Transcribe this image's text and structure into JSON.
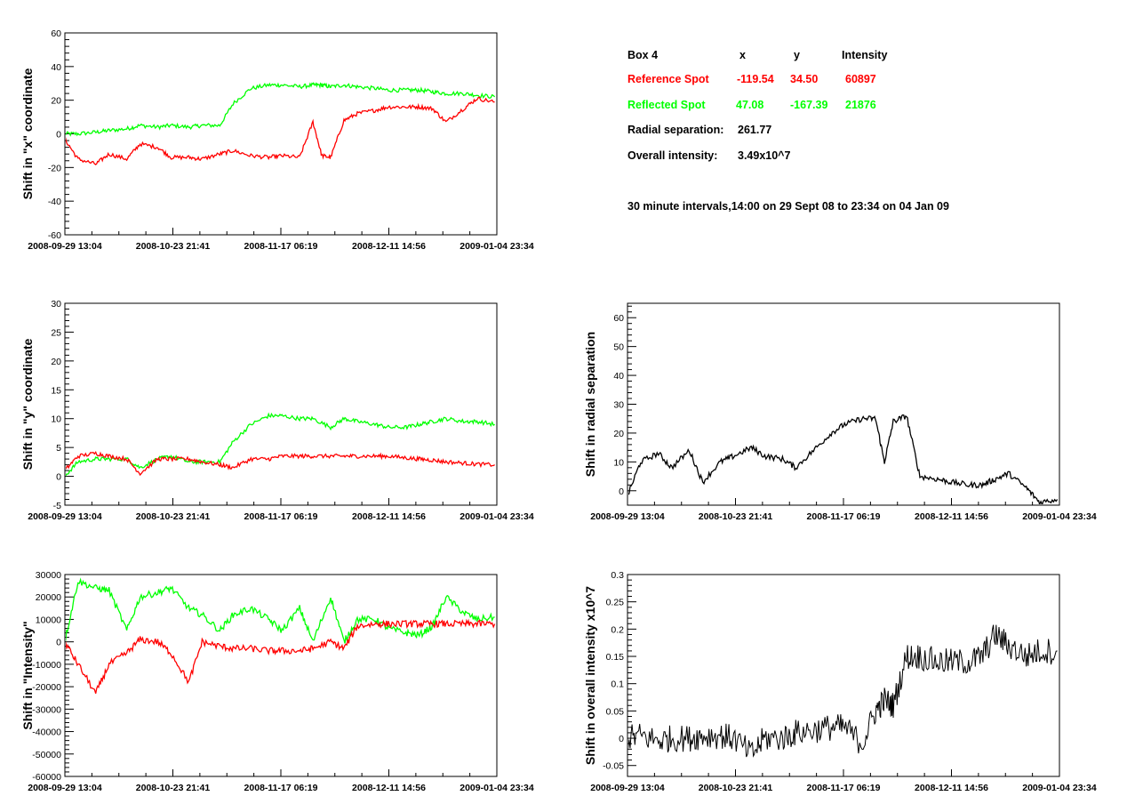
{
  "info": {
    "box_label": "Box 4",
    "col_x": "x",
    "col_y": "y",
    "col_intensity": "Intensity",
    "reference": {
      "label": "Reference Spot",
      "x": "-119.54",
      "y": "34.50",
      "intensity": "60897"
    },
    "reflected": {
      "label": "Reflected Spot",
      "x": "47.08",
      "y": "-167.39",
      "intensity": "21876"
    },
    "radial_label": "Radial separation:",
    "radial_value": "261.77",
    "overall_label": "Overall intensity:",
    "overall_value": "3.49x10^7",
    "interval_note": "30 minute intervals,14:00 on 29 Sept 08 to 23:34 on 04 Jan 09",
    "colors": {
      "reference": "#ff0000",
      "reflected": "#00ff00"
    }
  },
  "x_tick_labels": [
    "2008-09-29 13:04",
    "2008-10-23 21:41",
    "2008-11-17 06:19",
    "2008-12-11 14:56",
    "2009-01-04 23:34"
  ],
  "chart_data": [
    {
      "id": "x_shift",
      "type": "line",
      "ylabel": "Shift in \"x\" coordinate",
      "ylim": [
        -60,
        60
      ],
      "y_ticks": [
        -60,
        -40,
        -20,
        0,
        20,
        40,
        60
      ],
      "x_range": [
        "2008-09-29 13:04",
        "2009-01-04 23:34"
      ],
      "x": [
        "2008-09-29",
        "2008-10-02",
        "2008-10-06",
        "2008-10-09",
        "2008-10-13",
        "2008-10-16",
        "2008-10-20",
        "2008-10-23",
        "2008-10-27",
        "2008-10-30",
        "2008-11-03",
        "2008-11-06",
        "2008-11-10",
        "2008-11-14",
        "2008-11-17",
        "2008-11-21",
        "2008-11-24",
        "2008-11-26",
        "2008-11-28",
        "2008-12-01",
        "2008-12-04",
        "2008-12-08",
        "2008-12-11",
        "2008-12-15",
        "2008-12-18",
        "2008-12-21",
        "2008-12-24",
        "2008-12-28",
        "2008-12-31",
        "2009-01-04"
      ],
      "series": [
        {
          "name": "Reflected Spot",
          "color": "#00ff00",
          "values": [
            0,
            0,
            1,
            2,
            3,
            5,
            4,
            5,
            4,
            5,
            5,
            18,
            27,
            29,
            29,
            28,
            29,
            29,
            28,
            29,
            28,
            27,
            26,
            26,
            26,
            25,
            24,
            24,
            23,
            22
          ]
        },
        {
          "name": "Reference Spot",
          "color": "#ff0000",
          "values": [
            -3,
            -15,
            -18,
            -12,
            -15,
            -6,
            -8,
            -14,
            -14,
            -15,
            -12,
            -10,
            -13,
            -14,
            -13,
            -14,
            7,
            -13,
            -14,
            8,
            12,
            14,
            16,
            16,
            16,
            15,
            7,
            15,
            21,
            19
          ]
        }
      ]
    },
    {
      "id": "y_shift",
      "type": "line",
      "ylabel": "Shift in \"y\" coordinate",
      "ylim": [
        -5,
        30
      ],
      "y_ticks": [
        -5,
        0,
        5,
        10,
        15,
        20,
        25,
        30
      ],
      "x": [
        "2008-09-29",
        "2008-10-02",
        "2008-10-06",
        "2008-10-09",
        "2008-10-13",
        "2008-10-16",
        "2008-10-20",
        "2008-10-23",
        "2008-10-27",
        "2008-10-30",
        "2008-11-03",
        "2008-11-06",
        "2008-11-10",
        "2008-11-14",
        "2008-11-17",
        "2008-11-21",
        "2008-11-24",
        "2008-11-28",
        "2008-12-01",
        "2008-12-04",
        "2008-12-08",
        "2008-12-11",
        "2008-12-15",
        "2008-12-18",
        "2008-12-21",
        "2008-12-24",
        "2008-12-28",
        "2008-12-31",
        "2009-01-04"
      ],
      "series": [
        {
          "name": "Reflected Spot",
          "color": "#00ff00",
          "values": [
            0,
            2.5,
            3,
            3,
            3,
            1.5,
            3,
            3.5,
            2.5,
            2.5,
            2.5,
            6,
            9,
            10.5,
            10.5,
            10,
            10,
            8.5,
            10,
            9.5,
            9,
            8.5,
            8.5,
            9,
            9.5,
            10,
            9.5,
            9.5,
            9
          ]
        },
        {
          "name": "Reference Spot",
          "color": "#ff0000",
          "values": [
            1,
            3.5,
            4,
            3.5,
            3,
            0.5,
            3,
            3,
            3,
            2.5,
            2,
            1.5,
            3,
            3,
            3.5,
            3.5,
            3.5,
            3.5,
            3.5,
            3.5,
            3.5,
            3.5,
            3.2,
            3,
            2.8,
            2.5,
            2.3,
            2.1,
            2
          ]
        }
      ]
    },
    {
      "id": "radial_shift",
      "type": "line",
      "ylabel": "Shift in radial separation",
      "ylim": [
        -5,
        65
      ],
      "y_ticks": [
        0,
        10,
        20,
        30,
        40,
        50,
        60
      ],
      "x": [
        "2008-09-29",
        "2008-10-02",
        "2008-10-06",
        "2008-10-09",
        "2008-10-13",
        "2008-10-16",
        "2008-10-20",
        "2008-10-23",
        "2008-10-27",
        "2008-10-30",
        "2008-11-03",
        "2008-11-06",
        "2008-11-10",
        "2008-11-14",
        "2008-11-17",
        "2008-11-21",
        "2008-11-24",
        "2008-11-26",
        "2008-11-28",
        "2008-12-01",
        "2008-12-04",
        "2008-12-08",
        "2008-12-11",
        "2008-12-15",
        "2008-12-18",
        "2008-12-21",
        "2008-12-24",
        "2008-12-28",
        "2008-12-31",
        "2009-01-04"
      ],
      "series": [
        {
          "name": "",
          "color": "#000000",
          "values": [
            -2,
            10,
            13,
            8,
            14,
            3,
            10,
            12,
            15,
            12,
            11,
            8,
            14,
            20,
            23,
            25,
            25,
            10,
            24,
            26,
            5,
            4,
            3,
            2,
            2,
            4,
            6,
            1,
            -4,
            -3
          ]
        }
      ]
    },
    {
      "id": "intensity_shift",
      "type": "line",
      "ylabel": "Shift in \"Intensity\"",
      "ylim": [
        -60000,
        30000
      ],
      "y_ticks": [
        -60000,
        -50000,
        -40000,
        -30000,
        -20000,
        -10000,
        0,
        10000,
        20000,
        30000
      ],
      "x": [
        "2008-09-29",
        "2008-10-02",
        "2008-10-06",
        "2008-10-09",
        "2008-10-13",
        "2008-10-16",
        "2008-10-20",
        "2008-10-23",
        "2008-10-27",
        "2008-10-30",
        "2008-11-03",
        "2008-11-06",
        "2008-11-10",
        "2008-11-14",
        "2008-11-17",
        "2008-11-21",
        "2008-11-24",
        "2008-11-28",
        "2008-12-01",
        "2008-12-04",
        "2008-12-08",
        "2008-12-11",
        "2008-12-15",
        "2008-12-18",
        "2008-12-21",
        "2008-12-24",
        "2008-12-28",
        "2008-12-31",
        "2009-01-04"
      ],
      "series": [
        {
          "name": "Reflected Spot",
          "color": "#00ff00",
          "values": [
            0,
            27000,
            24000,
            23000,
            5000,
            20000,
            22000,
            24000,
            15000,
            12000,
            5000,
            12000,
            15000,
            10000,
            5000,
            15000,
            0,
            20000,
            0,
            10000,
            10000,
            6000,
            4000,
            3000,
            7000,
            20000,
            13000,
            10000,
            11000
          ]
        },
        {
          "name": "Reference Spot",
          "color": "#ff0000",
          "values": [
            0,
            -10000,
            -23000,
            -10000,
            -5000,
            1000,
            0,
            -5000,
            -18000,
            0,
            -2000,
            -3000,
            -3000,
            -4000,
            -4000,
            -4000,
            -3000,
            0,
            -3000,
            7000,
            8000,
            8000,
            8000,
            8000,
            8000,
            8000,
            8000,
            8000,
            8000
          ]
        }
      ]
    },
    {
      "id": "overall_intensity_shift",
      "type": "line",
      "ylabel": "Shift in overall intensity x10^7",
      "ylim": [
        -0.07,
        0.3
      ],
      "y_ticks": [
        -0.05,
        0,
        0.05,
        0.1,
        0.15,
        0.2,
        0.25,
        0.3
      ],
      "x": [
        "2008-09-29",
        "2008-10-02",
        "2008-10-06",
        "2008-10-09",
        "2008-10-13",
        "2008-10-16",
        "2008-10-20",
        "2008-10-23",
        "2008-10-27",
        "2008-10-30",
        "2008-11-03",
        "2008-11-06",
        "2008-11-10",
        "2008-11-14",
        "2008-11-17",
        "2008-11-21",
        "2008-11-24",
        "2008-11-26",
        "2008-11-28",
        "2008-12-01",
        "2008-12-04",
        "2008-12-08",
        "2008-12-11",
        "2008-12-15",
        "2008-12-18",
        "2008-12-21",
        "2008-12-24",
        "2008-12-28",
        "2008-12-31",
        "2009-01-04"
      ],
      "series": [
        {
          "name": "",
          "color": "#000000",
          "values": [
            0,
            0.005,
            -0.005,
            0,
            0,
            0.005,
            0.005,
            0,
            -0.03,
            0,
            0,
            0.01,
            0.015,
            0.02,
            0.02,
            -0.01,
            0.05,
            0.07,
            0.06,
            0.15,
            0.15,
            0.14,
            0.14,
            0.14,
            0.15,
            0.19,
            0.17,
            0.15,
            0.16,
            0.16
          ]
        }
      ]
    }
  ]
}
